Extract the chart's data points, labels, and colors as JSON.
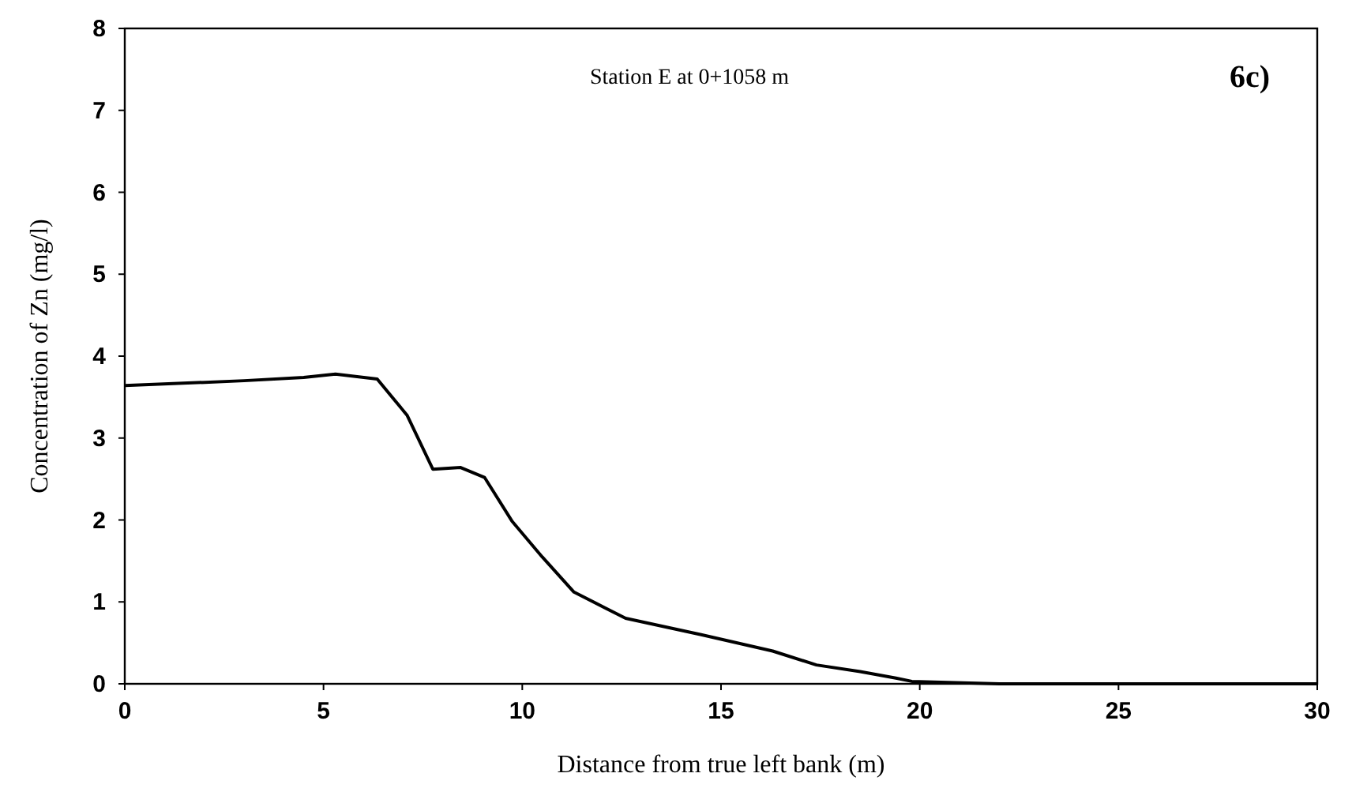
{
  "chart_data": {
    "type": "line",
    "xlabel": "Distance from true left bank (m)",
    "ylabel": "Concentration of Zn (mg/l)",
    "annotations": [
      "Station E at 0+1058 m",
      "6c)"
    ],
    "series": [
      {
        "color": "#000000",
        "x": [
          0,
          3,
          4.5,
          5.3,
          6.35,
          7.1,
          7.75,
          8.45,
          9.05,
          9.75,
          10.5,
          11.3,
          12.6,
          14.5,
          16.3,
          17.4,
          18.5,
          19.4,
          19.8,
          22,
          25,
          30
        ],
        "values": [
          3.64,
          3.7,
          3.74,
          3.78,
          3.72,
          3.28,
          2.62,
          2.64,
          2.52,
          1.98,
          1.55,
          1.12,
          0.8,
          0.6,
          0.4,
          0.23,
          0.15,
          0.07,
          0.03,
          0,
          0,
          0
        ]
      }
    ],
    "xlim": [
      0,
      30
    ],
    "xticks": [
      0,
      5,
      10,
      15,
      20,
      25,
      30
    ],
    "ylim": [
      0,
      8
    ],
    "yticks": [
      0,
      1,
      2,
      3,
      4,
      5,
      6,
      7,
      8
    ],
    "grid": false,
    "marker": "none",
    "line_style": "solid"
  }
}
